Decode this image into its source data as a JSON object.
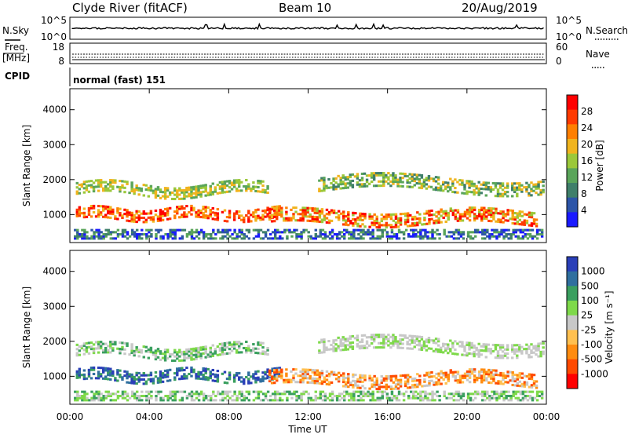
{
  "header": {
    "station": "Clyde River (fitACF)",
    "beam": "Beam 10",
    "date": "20/Aug/2019"
  },
  "aux_panels": {
    "nsky_label": "N.Sky",
    "nsearch_label": "N.Search",
    "noise_ticks_left": [
      "10^5",
      "10^0"
    ],
    "noise_ticks_right": [
      "10^5",
      "10^0"
    ],
    "freq_label_top": "Freq.",
    "freq_label_bottom": "[MHz]",
    "freq_ticks": [
      "18",
      "8"
    ],
    "nave_label": "Nave",
    "nave_ticks": [
      "60",
      "0"
    ],
    "cpid_label": "CPID",
    "cpid_value": "normal (fast) 151"
  },
  "colors": {
    "power_scale": [
      "#1a1aff",
      "#2c55a8",
      "#3f7f6a",
      "#5aa55a",
      "#9bc83a",
      "#f0b41e",
      "#ff7f00",
      "#ff3a00",
      "#ff0000"
    ],
    "velocity_scale": [
      "#ff0000",
      "#ff4a00",
      "#ff8c10",
      "#ffc050",
      "#c8c8c8",
      "#7ed94a",
      "#3a9f5f",
      "#2f6f9f",
      "#2a3fb8"
    ]
  },
  "chart_data": [
    {
      "type": "heatmap",
      "name": "power",
      "ylabel": "Slant Range [km]",
      "yticks": [
        "4000",
        "3000",
        "2000",
        "1000"
      ],
      "ylim": [
        200,
        4600
      ],
      "xlim": [
        0,
        24
      ],
      "colorbar_label": "Power [dB]",
      "colorbar_ticks": [
        "28",
        "24",
        "20",
        "16",
        "12",
        "8",
        "4"
      ],
      "zlim": [
        0,
        32
      ]
    },
    {
      "type": "heatmap",
      "name": "velocity",
      "ylabel": "Slant Range [km]",
      "yticks": [
        "4000",
        "3000",
        "2000",
        "1000"
      ],
      "ylim": [
        200,
        4600
      ],
      "xlim": [
        0,
        24
      ],
      "xticks": [
        "00:00",
        "04:00",
        "08:00",
        "12:00",
        "16:00",
        "20:00",
        "00:00"
      ],
      "xlabel": "Time UT",
      "colorbar_label": "Velocity [m s⁻¹]",
      "colorbar_ticks": [
        "1000",
        "500",
        "100",
        "25",
        "-25",
        "-100",
        "-500",
        "-1000"
      ]
    }
  ]
}
